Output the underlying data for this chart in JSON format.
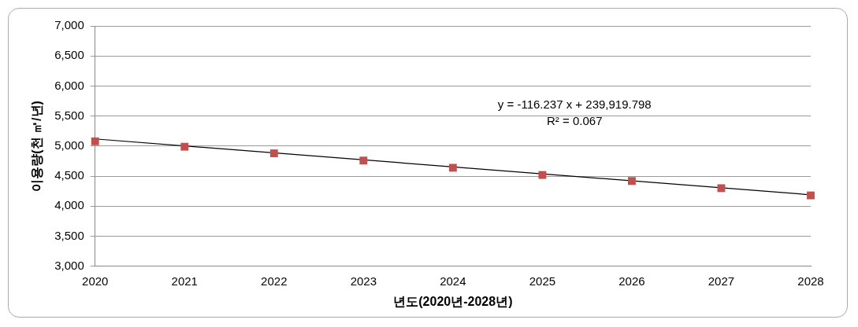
{
  "chart_data": {
    "type": "scatter",
    "xlabel": "년도(2020년-2028년)",
    "ylabel": "이용량(천 ㎥/년)",
    "x": [
      2020,
      2021,
      2022,
      2023,
      2024,
      2025,
      2026,
      2027,
      2028
    ],
    "series": [
      {
        "type": "scatter",
        "color": "#c0504d",
        "marker": "square",
        "values": [
          5080,
          4990,
          4880,
          4760,
          4640,
          4520,
          4420,
          4300,
          4180
        ]
      },
      {
        "type": "line",
        "color": "#000000",
        "marker": "none",
        "x": [
          2020,
          2028
        ],
        "values": [
          5120,
          4190
        ]
      }
    ],
    "annotations": [
      "y = -116.237 x + 239,919.798",
      "R² = 0.067"
    ],
    "xlim": [
      2020,
      2028
    ],
    "xticks": [
      2020,
      2021,
      2022,
      2023,
      2024,
      2025,
      2026,
      2027,
      2028
    ],
    "ylim": [
      3000,
      7000
    ],
    "yticks": [
      {
        "value": 3000,
        "label": "3,000"
      },
      {
        "value": 3500,
        "label": "3,500"
      },
      {
        "value": 4000,
        "label": "4,000"
      },
      {
        "value": 4500,
        "label": "4,500"
      },
      {
        "value": 5000,
        "label": "5,000"
      },
      {
        "value": 5500,
        "label": "5,500"
      },
      {
        "value": 6000,
        "label": "6,000"
      },
      {
        "value": 6500,
        "label": "6,500"
      },
      {
        "value": 7000,
        "label": "7,000"
      }
    ],
    "grid": "y",
    "legend": false
  }
}
